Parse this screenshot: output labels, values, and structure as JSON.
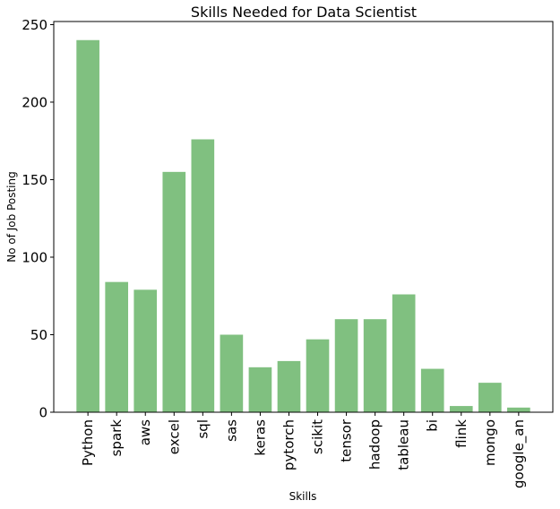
{
  "chart_data": {
    "type": "bar",
    "title": "Skills Needed for Data Scientist",
    "xlabel": "Skills",
    "ylabel": "No of Job Posting",
    "categories": [
      "Python",
      "spark",
      "aws",
      "excel",
      "sql",
      "sas",
      "keras",
      "pytorch",
      "scikit",
      "tensor",
      "hadoop",
      "tableau",
      "bi",
      "flink",
      "mongo",
      "google_an"
    ],
    "values": [
      240,
      84,
      79,
      155,
      176,
      50,
      29,
      33,
      47,
      60,
      60,
      76,
      28,
      4,
      19,
      3
    ],
    "ylim": [
      0,
      252
    ],
    "yticks": [
      0,
      50,
      100,
      150,
      200,
      250
    ],
    "bar_color": "#80c080",
    "grid": false,
    "legend": "none"
  }
}
